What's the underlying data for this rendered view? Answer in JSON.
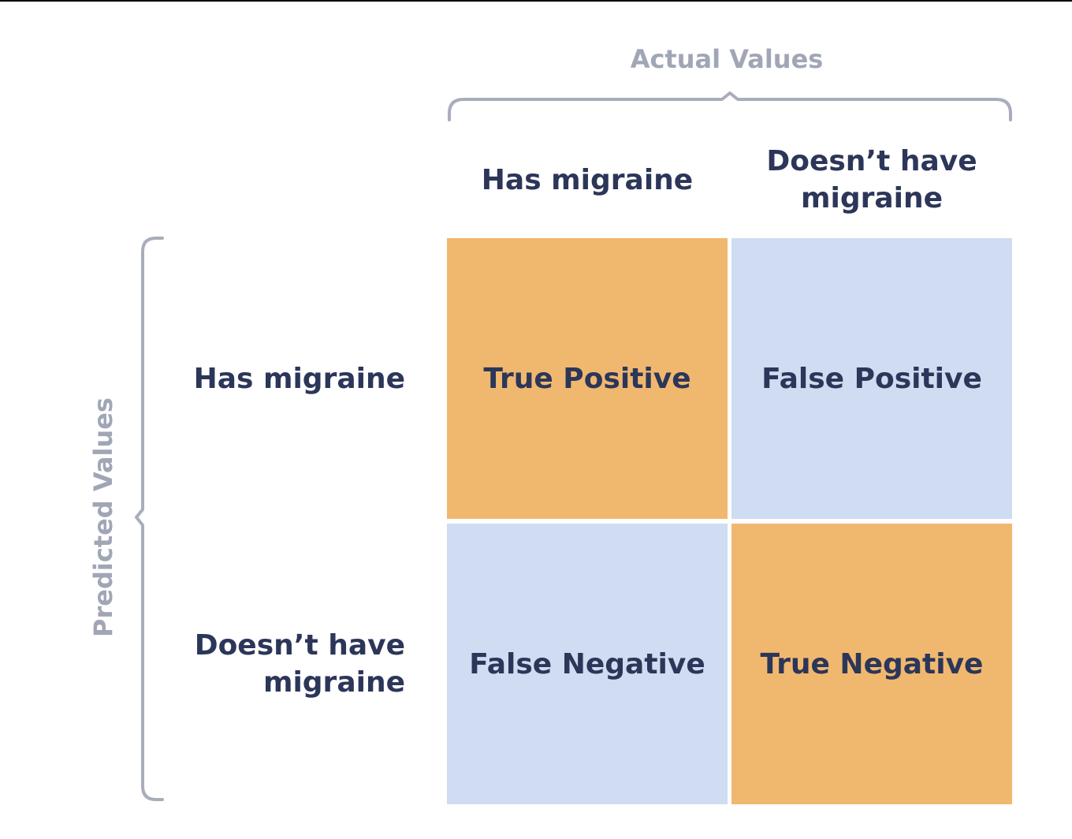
{
  "colors": {
    "text": "#2c3659",
    "axis_label": "#a1a6b6",
    "brace": "#a9adbb",
    "positive_cell": "#f0b86f",
    "negative_cell": "#cfdcf1"
  },
  "axes": {
    "actual_label": "Actual Values",
    "predicted_label": "Predicted Values"
  },
  "columns": [
    {
      "label": "Has migraine"
    },
    {
      "label": "Doesn’t have migraine"
    }
  ],
  "rows": [
    {
      "label": "Has migraine"
    },
    {
      "label": "Doesn’t have migraine"
    }
  ],
  "cells": [
    [
      {
        "label": "True Positive",
        "color": "#f0b86f"
      },
      {
        "label": "False Positive",
        "color": "#cfdcf1"
      }
    ],
    [
      {
        "label": "False Negative",
        "color": "#cfdcf1"
      },
      {
        "label": "True Negative",
        "color": "#f0b86f"
      }
    ]
  ]
}
